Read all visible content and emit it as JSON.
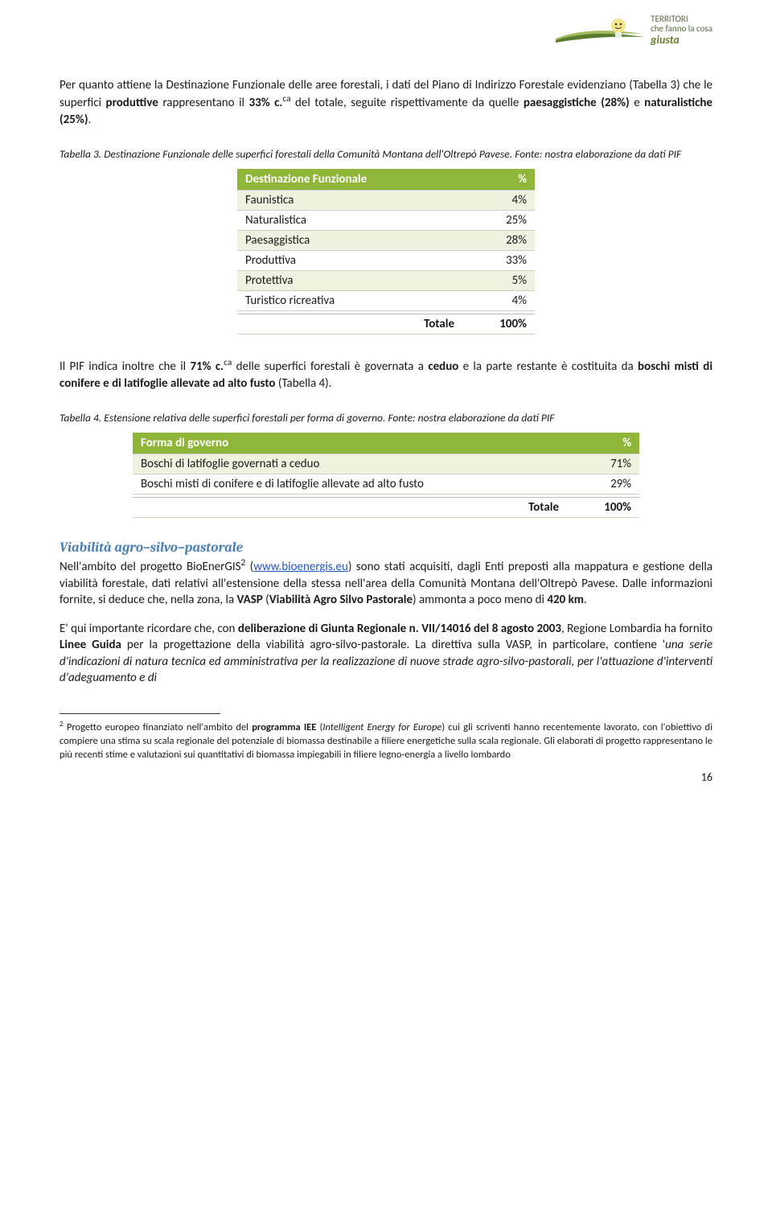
{
  "logo": {
    "line1": "TERRITORI",
    "line2": "che fanno la cosa",
    "line3": "giusta",
    "swoosh_color_dark": "#5a7a2f",
    "swoosh_color_light": "#9fbb5e"
  },
  "para1": {
    "seg1": "Per quanto attiene la Destinazione Funzionale delle aree forestali, i dati del Piano di Indirizzo Forestale evidenziano (Tabella 3) che le superfici ",
    "bold1": "produttive",
    "seg2": " rappresentano il ",
    "bold2": "33% c.",
    "sup1": "ca",
    "seg3": " del totale, seguite rispettivamente da quelle ",
    "bold3": "paesaggistiche (28%)",
    "seg4": " e ",
    "bold4": "naturalistiche (25%)",
    "seg5": "."
  },
  "caption3": "Tabella 3. Destinazione Funzionale delle superfici forestali della Comunità Montana dell'Oltrepò Pavese. Fonte: nostra elaborazione da dati PIF",
  "table3": {
    "header_label": "Destinazione Funzionale",
    "header_pct": "%",
    "rows": [
      {
        "label": "Faunistica",
        "pct": "4%"
      },
      {
        "label": "Naturalistica",
        "pct": "25%"
      },
      {
        "label": "Paesaggistica",
        "pct": "28%"
      },
      {
        "label": "Produttiva",
        "pct": "33%"
      },
      {
        "label": "Protettiva",
        "pct": "5%"
      },
      {
        "label": "Turistico ricreativa",
        "pct": "4%"
      }
    ],
    "total_label": "Totale",
    "total_pct": "100%",
    "header_bg": "#8fb638",
    "header_fg": "#ffffff",
    "row_even_bg": "#eef2de"
  },
  "para2": {
    "seg1": "Il PIF indica inoltre che il ",
    "bold1": "71% c.",
    "sup1": "ca",
    "seg2": " delle superfici forestali è governata a ",
    "bold2": "ceduo",
    "seg3": " e la parte restante è costituita da ",
    "bold3": "boschi misti di conifere e di latifoglie allevate ad alto fusto",
    "seg4": " (Tabella 4)."
  },
  "caption4": "Tabella 4. Estensione relativa delle superfici forestali per forma di governo. Fonte: nostra elaborazione da dati PIF",
  "table4": {
    "header_label": "Forma di governo",
    "header_pct": "%",
    "rows": [
      {
        "label": "Boschi di latifoglie governati a ceduo",
        "pct": "71%"
      },
      {
        "label": "Boschi misti di conifere e di latifoglie allevate ad alto fusto",
        "pct": "29%"
      }
    ],
    "total_label": "Totale",
    "total_pct": "100%"
  },
  "subhead": "Viabilità agro–silvo–pastorale",
  "para3": {
    "seg1": "Nell'ambito del progetto BioEnerGIS",
    "sup1": "2",
    "seg2": " (",
    "link": "www.bioenergis.eu",
    "seg3": ") sono stati acquisiti, dagli Enti preposti alla mappatura e gestione della viabilità forestale, dati relativi all'estensione della stessa nell'area della Comunità Montana dell'Oltrepò Pavese. Dalle informazioni fornite, si deduce che, nella zona, la ",
    "bold1": "VASP",
    "seg4": " (",
    "bold2": "Viabilità Agro Silvo Pastorale",
    "seg5": ") ammonta a poco meno di ",
    "bold3": "420 km",
    "seg6": "."
  },
  "para4": {
    "seg1": "E' qui importante ricordare che, con ",
    "bold1": "deliberazione di Giunta Regionale n. VII/14016 del 8 agosto 2003",
    "seg2": ", Regione Lombardia ha fornito ",
    "bold2": "Linee Guida",
    "seg3": " per la progettazione della viabilità agro-silvo-pastorale. La direttiva sulla VASP, in particolare, contiene '",
    "ital1": "una serie d'indicazioni di natura tecnica ed amministrativa per la realizzazione di nuove strade agro-silvo-pastorali, per l'attuazione d'interventi d'adeguamento e di"
  },
  "footnote": {
    "sup": "2",
    "seg1": " Progetto europeo finanziato nell'ambito del ",
    "bold1": "programma IEE",
    "seg2": " (",
    "ital1": "Intelligent Energy for Europe",
    "seg3": ") cui gli scriventi hanno recentemente lavorato, con l'obiettivo di compiere una stima su scala regionale del potenziale di biomassa destinabile a filiere energetiche sulla scala regionale. Gli elaborati di progetto rappresentano le più recenti stime e valutazioni sui quantitativi di biomassa impiegabili in filiere legno-energia a livello lombardo"
  },
  "pagenum": "16"
}
